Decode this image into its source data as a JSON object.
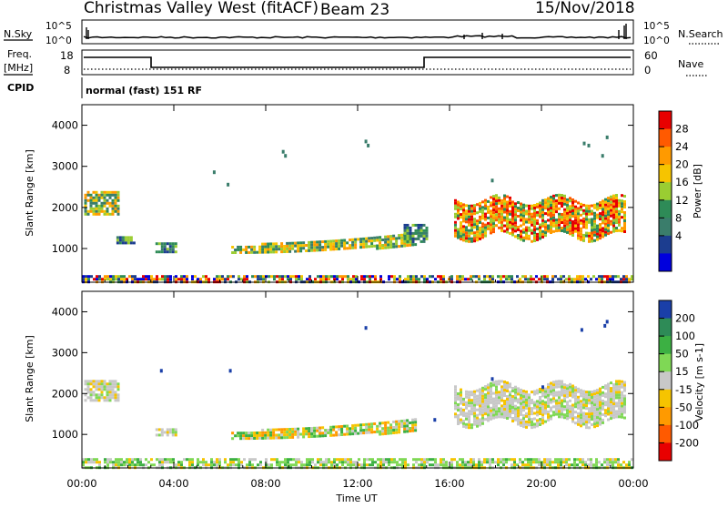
{
  "header": {
    "station": "Christmas Valley West (fitACF)",
    "beam": "Beam 23",
    "date": "15/Nov/2018"
  },
  "strips": {
    "nsky_label": "N.Sky",
    "nsky_ticks": [
      "10^5",
      "10^0"
    ],
    "nsearch_label": "N.Search",
    "nsearch_ticks": [
      "10^5",
      "10^0"
    ],
    "freq_label": "Freq.",
    "freq_unit": "[MHz]",
    "freq_ticks": [
      "18",
      "8"
    ],
    "nave_label": "Nave",
    "nave_ticks": [
      "60",
      "0"
    ],
    "cpid_label": "CPID",
    "cpid_text": "normal (fast) 151 RF"
  },
  "chart_data": [
    {
      "type": "heatmap",
      "panel": "power",
      "xlabel": "",
      "ylabel": "Slant Range [km]",
      "ylim": [
        180,
        4500
      ],
      "yticks": [
        "1000",
        "2000",
        "3000",
        "4000"
      ],
      "colorbar_label": "Power [dB]",
      "colorbar_ticks": [
        "28",
        "24",
        "20",
        "16",
        "12",
        "8",
        "4"
      ],
      "colorbar_colors": [
        "#e80000",
        "#ff5a00",
        "#ff9a00",
        "#f6c400",
        "#9acd32",
        "#2e8b57",
        "#3a7d6b",
        "#1c3d8f",
        "#0000dd"
      ],
      "echo_regions": [
        {
          "x0": 0.1,
          "x1": 1.6,
          "y0": 1850,
          "y1": 2400,
          "level": "mid"
        },
        {
          "x0": 1.5,
          "x1": 2.3,
          "y0": 1150,
          "y1": 1300,
          "level": "low"
        },
        {
          "x0": 3.2,
          "x1": 4.1,
          "y0": 950,
          "y1": 1150,
          "level": "low"
        },
        {
          "x0": 6.5,
          "x1": 14.5,
          "y0": 850,
          "y1": 1200,
          "level": "mid"
        },
        {
          "x0": 14.0,
          "x1": 15.0,
          "y0": 1200,
          "y1": 1600,
          "level": "low"
        },
        {
          "x0": 16.2,
          "x1": 23.6,
          "y0": 1300,
          "y1": 2200,
          "level": "high"
        },
        {
          "x0": 0.0,
          "x1": 24.0,
          "y0": 180,
          "y1": 420,
          "level": "mixed"
        }
      ]
    },
    {
      "type": "heatmap",
      "panel": "velocity",
      "xlabel": "Time UT",
      "ylabel": "Slant Range [km]",
      "ylim": [
        180,
        4500
      ],
      "xticks": [
        "00:00",
        "04:00",
        "08:00",
        "12:00",
        "16:00",
        "20:00",
        "00:00"
      ],
      "yticks": [
        "1000",
        "2000",
        "3000",
        "4000"
      ],
      "colorbar_label": "Velocity [m s-1]",
      "colorbar_ticks": [
        "200",
        "100",
        "50",
        "15",
        "-15",
        "-50",
        "-100",
        "-200"
      ],
      "colorbar_colors": [
        "#1a3fa8",
        "#2e8b57",
        "#3cb043",
        "#7fd855",
        "#c8c8c8",
        "#f6c400",
        "#ff9a00",
        "#ff5a00",
        "#e80000"
      ],
      "echo_regions": [
        {
          "x0": 0.1,
          "x1": 1.6,
          "y0": 1850,
          "y1": 2400,
          "level": "ground"
        },
        {
          "x0": 3.2,
          "x1": 4.1,
          "y0": 950,
          "y1": 1150,
          "level": "ground"
        },
        {
          "x0": 6.5,
          "x1": 14.5,
          "y0": 850,
          "y1": 1200,
          "level": "mixed-orange"
        },
        {
          "x0": 16.2,
          "x1": 23.6,
          "y0": 1300,
          "y1": 2200,
          "level": "ground"
        },
        {
          "x0": 0.0,
          "x1": 24.0,
          "y0": 180,
          "y1": 420,
          "level": "green"
        }
      ]
    }
  ]
}
